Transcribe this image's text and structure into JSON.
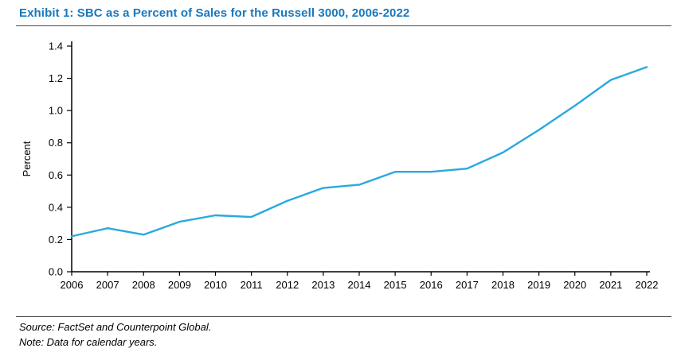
{
  "title": "Exhibit 1: SBC as a Percent of Sales for the Russell 3000, 2006-2022",
  "footer": {
    "source": "Source: FactSet and Counterpoint Global.",
    "note": "Note: Data for calendar years."
  },
  "colors": {
    "title_text": "#1878BE",
    "series_line": "#29A9DF",
    "axis": "#000000",
    "rule": "#4a4a4a"
  },
  "chart_data": {
    "type": "line",
    "title": "Exhibit 1: SBC as a Percent of Sales for the Russell 3000, 2006-2022",
    "x": [
      2006,
      2007,
      2008,
      2009,
      2010,
      2011,
      2012,
      2013,
      2014,
      2015,
      2016,
      2017,
      2018,
      2019,
      2020,
      2021,
      2022
    ],
    "values": [
      0.22,
      0.27,
      0.23,
      0.31,
      0.35,
      0.34,
      0.44,
      0.52,
      0.54,
      0.62,
      0.62,
      0.64,
      0.74,
      0.88,
      1.03,
      1.19,
      1.27
    ],
    "xlabel": "",
    "ylabel": "Percent",
    "ylim": [
      0.0,
      1.4
    ],
    "ytick_step": 0.2,
    "grid": false,
    "legend_position": "none",
    "series_name": "SBC as a Percent of Sales"
  }
}
